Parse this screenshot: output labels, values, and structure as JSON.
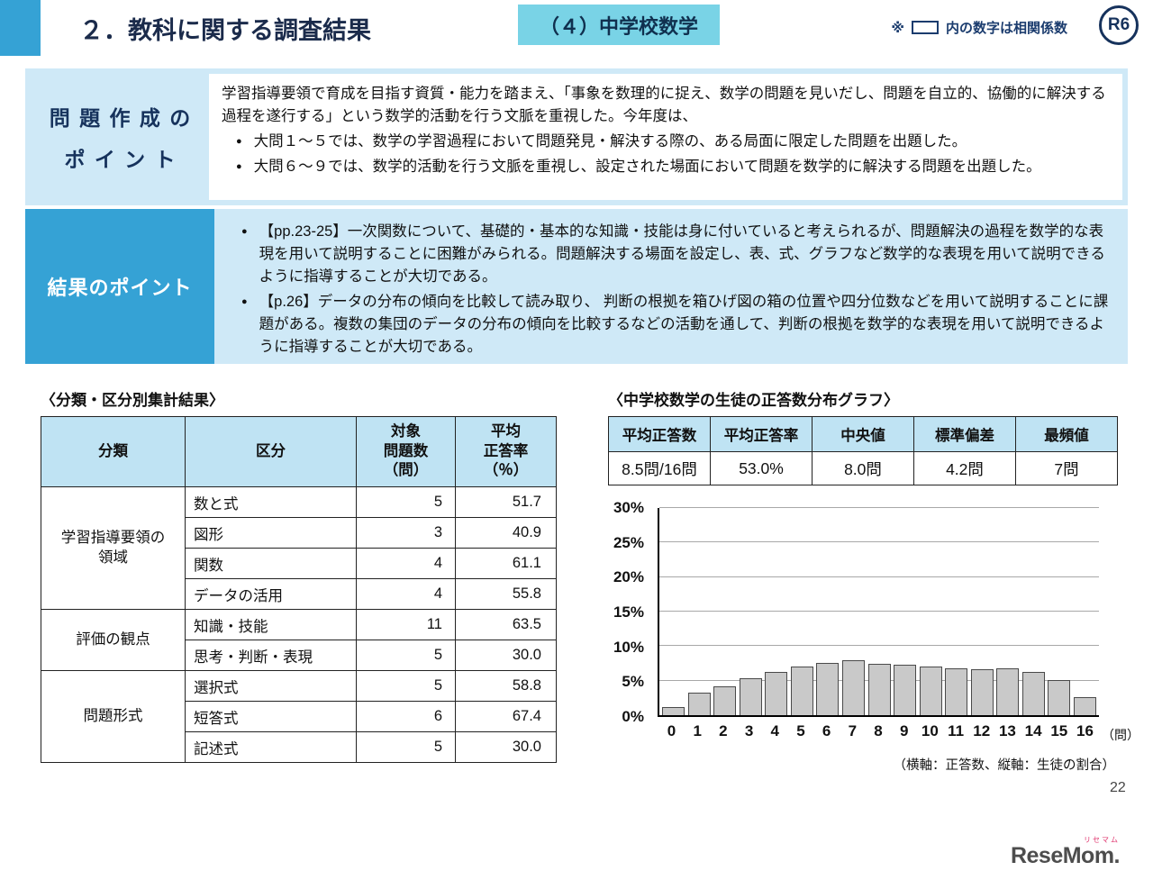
{
  "header": {
    "title": "２．教科に関する調査結果",
    "subject_badge": "（４）中学校数学",
    "note_prefix": "※",
    "note_text": "内の数字は相関係数",
    "year_badge": "R6"
  },
  "colors": {
    "accent_blue": "#35a2d5",
    "light_blue_panel": "#cfe9f7",
    "subject_cyan": "#79d3e6",
    "table_header_blue": "#bfe3f3",
    "bar_gray": "#c9c9c9",
    "navy_text": "#16325c"
  },
  "sections": {
    "creation": {
      "label_line1": "問題作成の",
      "label_line2": "ポイント",
      "intro": "学習指導要領で育成を目指す資質・能力を踏まえ、「事象を数理的に捉え、数学の問題を見いだし、問題を自立的、協働的に解決する過程を遂行する」という数学的活動を行う文脈を重視した。今年度は、",
      "bullets": [
        "大問１～５では、数学の学習過程において問題発見・解決する際の、ある局面に限定した問題を出題した。",
        "大問６～９では、数学的活動を行う文脈を重視し、設定された場面において問題を数学的に解決する問題を出題した。"
      ]
    },
    "results": {
      "label": "結果のポイント",
      "bullets": [
        "【pp.23-25】一次関数について、基礎的・基本的な知識・技能は身に付いていると考えられるが、問題解決の過程を数学的な表現を用いて説明することに困難がみられる。問題解決する場面を設定し、表、式、グラフなど数学的な表現を用いて説明できるように指導することが大切である。",
        "【p.26】データの分布の傾向を比較して読み取り、 判断の根拠を箱ひげ図の箱の位置や四分位数などを用いて説明することに課題がある。複数の集団のデータの分布の傾向を比較するなどの活動を通して、判断の根拠を数学的な表現を用いて説明できるように指導することが大切である。"
      ]
    }
  },
  "summary_table": {
    "heading": "〈分類・区分別集計結果〉",
    "headers": [
      "分類",
      "区分",
      "対象\n問題数\n（問）",
      "平均\n正答率\n（％）"
    ],
    "groups": [
      {
        "category": "学習指導要領の\n領域",
        "rows": [
          {
            "kubun": "数と式",
            "num": "5",
            "rate": "51.7"
          },
          {
            "kubun": "図形",
            "num": "3",
            "rate": "40.9"
          },
          {
            "kubun": "関数",
            "num": "4",
            "rate": "61.1"
          },
          {
            "kubun": "データの活用",
            "num": "4",
            "rate": "55.8"
          }
        ]
      },
      {
        "category": "評価の観点",
        "rows": [
          {
            "kubun": "知識・技能",
            "num": "11",
            "rate": "63.5"
          },
          {
            "kubun": "思考・判断・表現",
            "num": "5",
            "rate": "30.0"
          }
        ]
      },
      {
        "category": "問題形式",
        "rows": [
          {
            "kubun": "選択式",
            "num": "5",
            "rate": "58.8"
          },
          {
            "kubun": "短答式",
            "num": "6",
            "rate": "67.4"
          },
          {
            "kubun": "記述式",
            "num": "5",
            "rate": "30.0"
          }
        ]
      }
    ]
  },
  "distribution": {
    "heading": "〈中学校数学の生徒の正答数分布グラフ〉",
    "stats": [
      {
        "label": "平均正答数",
        "value": "8.5問/16問"
      },
      {
        "label": "平均正答率",
        "value": "53.0%"
      },
      {
        "label": "中央値",
        "value": "8.0問"
      },
      {
        "label": "標準偏差",
        "value": "4.2問"
      },
      {
        "label": "最頻値",
        "value": "7問"
      }
    ],
    "x_unit": "（問）",
    "axis_note": "（横軸：正答数、縦軸：生徒の割合）"
  },
  "chart_data": {
    "type": "bar",
    "title": "中学校数学の生徒の正答数分布グラフ",
    "categories": [
      "0",
      "1",
      "2",
      "3",
      "4",
      "5",
      "6",
      "7",
      "8",
      "9",
      "10",
      "11",
      "12",
      "13",
      "14",
      "15",
      "16"
    ],
    "values": [
      1.2,
      3.3,
      4.2,
      5.3,
      6.2,
      7.0,
      7.6,
      7.9,
      7.5,
      7.3,
      7.1,
      6.8,
      6.6,
      6.8,
      6.3,
      5.1,
      2.6
    ],
    "xlabel": "正答数",
    "ylabel": "生徒の割合",
    "ylim": [
      0,
      30
    ],
    "ytick_step": 5,
    "ytick_suffix": "%",
    "grid": true,
    "legend": false,
    "bar_color": "#c9c9c9"
  },
  "footer": {
    "page_number": "22",
    "logo_text": "ReseMom.",
    "logo_ruby": "リセマム"
  }
}
